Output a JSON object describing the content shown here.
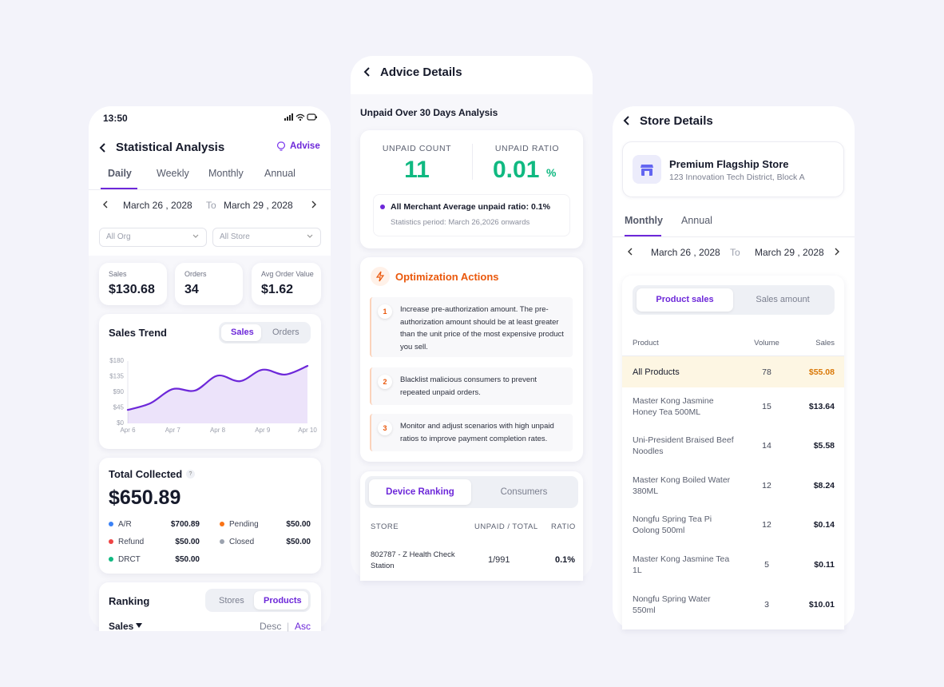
{
  "left": {
    "status_time": "13:50",
    "title": "Statistical Analysis",
    "advise": "Advise",
    "tabs": [
      "Daily",
      "Weekly",
      "Monthly",
      "Annual"
    ],
    "date_from": "March 26 , 2028",
    "date_to_word": "To",
    "date_to": "March 29 , 2028",
    "filters": [
      "All Org",
      "All Store"
    ],
    "kpis": [
      {
        "label": "Sales",
        "value": "$130.68"
      },
      {
        "label": "Orders",
        "value": "34"
      },
      {
        "label": "Avg Order Value",
        "value": "$1.62"
      }
    ],
    "trend_toggle": [
      "Sales",
      "Orders"
    ],
    "total": {
      "title": "Total Collected",
      "help": "?",
      "amount": "$650.89",
      "items": [
        {
          "label": "A/R",
          "value": "$700.89"
        },
        {
          "label": "Pending",
          "value": "$50.00"
        },
        {
          "label": "Refund",
          "value": "$50.00"
        },
        {
          "label": "Closed",
          "value": "$50.00"
        },
        {
          "label": "DRCT",
          "value": "$50.00"
        }
      ]
    },
    "ranking": {
      "title": "Ranking",
      "toggle": [
        "Stores",
        "Products"
      ],
      "sort_field": "Sales",
      "desc": "Desc",
      "separator": "|",
      "asc": "Asc"
    }
  },
  "chart_data": {
    "type": "area",
    "title": "Sales Trend",
    "categories": [
      "Apr 6",
      null,
      "Apr 7",
      null,
      "Apr 8",
      null,
      "Apr 9",
      null,
      "Apr 10"
    ],
    "values": [
      39,
      58,
      99,
      95,
      138,
      122,
      155,
      141,
      166
    ],
    "color": "#6d28d9",
    "ylim": [
      0,
      180
    ],
    "yticks": [
      {
        "value": 0,
        "label": "$0"
      },
      {
        "value": 45,
        "label": "$45"
      },
      {
        "value": 90,
        "label": "$90"
      },
      {
        "value": 135,
        "label": "$135"
      },
      {
        "value": 180,
        "label": "$180"
      }
    ],
    "grid": false
  },
  "middle": {
    "title": "Advice Details",
    "section": "Unpaid Over 30 Days Analysis",
    "unpaid_count_label": "UNPAID COUNT",
    "unpaid_count": "11",
    "unpaid_ratio_label": "UNPAID RATIO",
    "unpaid_ratio": "0.01",
    "unpaid_ratio_unit": "%",
    "average_note": "All Merchant Average unpaid ratio: 0.1%",
    "period_note": "Statistics period: March 26,2026 onwards",
    "actions_title": "Optimization Actions",
    "actions": [
      {
        "number": "1",
        "text": "Increase pre-authorization amount. The pre-authorization amount should be at least greater than the unit price of the most expensive product you sell."
      },
      {
        "number": "2",
        "text": "Blacklist malicious consumers to prevent repeated unpaid orders."
      },
      {
        "number": "3",
        "text": "Monitor and adjust scenarios with high unpaid ratios to improve payment completion rates."
      }
    ],
    "tabs": [
      "Device Ranking",
      "Consumers"
    ],
    "table": {
      "header": [
        "STORE",
        "UNPAID / TOTAL",
        "RATIO"
      ],
      "rows": [
        [
          "802787 - Z Health Check Station",
          "1/991",
          "0.1%"
        ]
      ]
    }
  },
  "right": {
    "title": "Store Details",
    "store_name": "Premium Flagship Store",
    "store_address": "123 Innovation Tech District, Block A",
    "tabs": [
      "Monthly",
      "Annual"
    ],
    "date_from": "March 26 , 2028",
    "date_to_word": "To",
    "date_to": "March 29 , 2028",
    "toggle": [
      "Product sales",
      "Sales amount"
    ],
    "table": {
      "header": [
        "Product",
        "Volume",
        "Sales"
      ],
      "rows": [
        [
          "All Products",
          "78",
          "$55.08"
        ],
        [
          "Master Kong Jasmine Honey Tea 500ML",
          "15",
          "$13.64"
        ],
        [
          "Uni-President Braised Beef Noodles",
          "14",
          "$5.58"
        ],
        [
          "Master Kong Boiled Water 380ML",
          "12",
          "$8.24"
        ],
        [
          "Nongfu Spring Tea Pi Oolong 500ml",
          "12",
          "$0.14"
        ],
        [
          "Master Kong Jasmine Tea 1L",
          "5",
          "$0.11"
        ],
        [
          "Nongfu Spring Water 550ml",
          "3",
          "$10.01"
        ]
      ]
    }
  }
}
